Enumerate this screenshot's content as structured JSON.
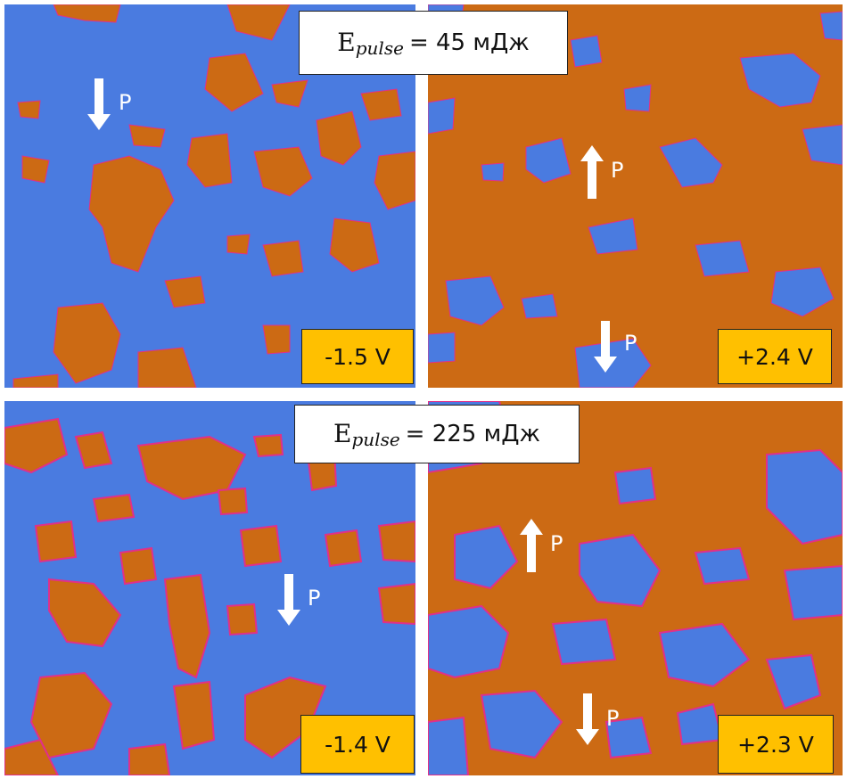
{
  "figure": {
    "rows": [
      {
        "energy_label": {
          "symbol": "E",
          "subscript": "pulse",
          "value": "= 45 мДж"
        },
        "panels": [
          {
            "voltage": "-1.5 V",
            "dominant_phase": "blue",
            "arrows": [
              {
                "direction": "down",
                "label": "P"
              }
            ]
          },
          {
            "voltage": "+2.4 V",
            "dominant_phase": "orange",
            "arrows": [
              {
                "direction": "up",
                "label": "P"
              },
              {
                "direction": "down",
                "label": "P"
              }
            ]
          }
        ]
      },
      {
        "energy_label": {
          "symbol": "E",
          "subscript": "pulse",
          "value": "= 225 мДж"
        },
        "panels": [
          {
            "voltage": "-1.4 V",
            "dominant_phase": "blue",
            "arrows": [
              {
                "direction": "down",
                "label": "P"
              }
            ]
          },
          {
            "voltage": "+2.3 V",
            "dominant_phase": "orange",
            "arrows": [
              {
                "direction": "up",
                "label": "P"
              },
              {
                "direction": "down",
                "label": "P"
              }
            ]
          }
        ]
      }
    ],
    "colors": {
      "blue_domain": "#4a7be0",
      "orange_domain": "#cc6a14",
      "boundary": "#e0308a",
      "label_bg": "#ffc000"
    }
  }
}
